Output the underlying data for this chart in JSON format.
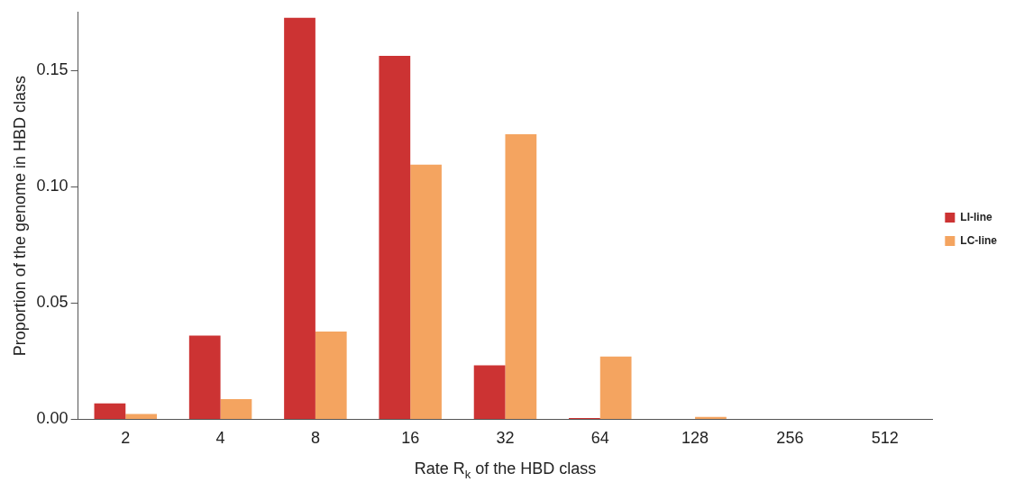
{
  "chart_data": {
    "type": "bar",
    "xlabel": "Rate R$_{k}$ of the HBD class",
    "ylabel": "Proportion of the genome in HBD class",
    "categories": [
      "2",
      "4",
      "8",
      "16",
      "32",
      "64",
      "128",
      "256",
      "512"
    ],
    "series": [
      {
        "name": "LI-line",
        "color": "#cc3333",
        "values": [
          0.0068,
          0.036,
          0.1727,
          0.1563,
          0.0232,
          0.0005,
          0,
          0,
          0
        ]
      },
      {
        "name": "LC-line",
        "color": "#f4a460",
        "values": [
          0.0023,
          0.0087,
          0.0377,
          0.1095,
          0.1226,
          0.027,
          0.001,
          0,
          0
        ]
      }
    ],
    "ylim": [
      0,
      0.175
    ],
    "yticks": [
      {
        "value": 0,
        "label": "0.00"
      },
      {
        "value": 0.05,
        "label": "0.05"
      },
      {
        "value": 0.1,
        "label": "0.10"
      },
      {
        "value": 0.15,
        "label": "0.15"
      }
    ],
    "grid": false,
    "legend": "right"
  }
}
